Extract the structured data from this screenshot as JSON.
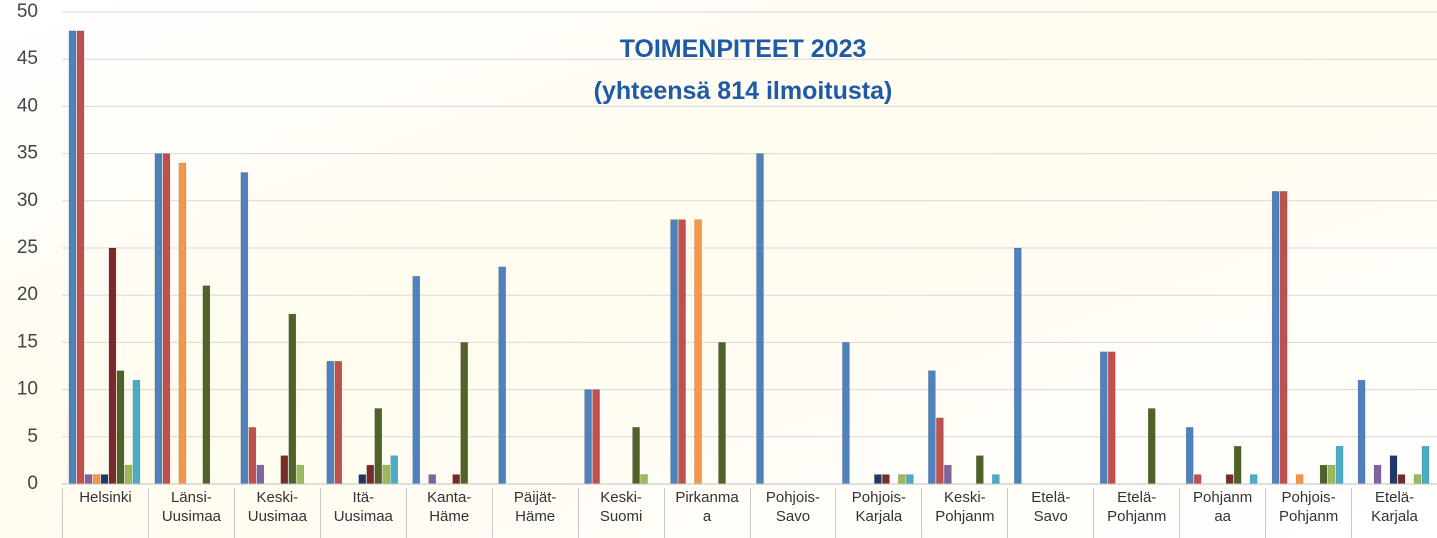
{
  "chart_data": {
    "type": "bar",
    "title": "TOIMENPITEET  2023",
    "subtitle": "(yhteensä 814 ilmoitusta)",
    "categories": [
      "Helsinki",
      "Länsi-\nUusimaa",
      "Keski-\nUusimaa",
      "Itä-\nUusimaa",
      "Kanta-\nHäme",
      "Päijät-\nHäme",
      "Keski-\nSuomi",
      "Pirkanma\na",
      "Pohjois-\nSavo",
      "Pohjois-\nKarjala",
      "Keski-\nPohjanm",
      "Etelä-\nSavo",
      "Etelä-\nPohjanm",
      "Pohjanm\naa",
      "Pohjois-\nPohjanm",
      "Etelä-\nKarjala"
    ],
    "series": [
      {
        "color": "#4f81bd",
        "values": [
          48,
          35,
          33,
          13,
          22,
          23,
          10,
          28,
          35,
          15,
          12,
          25,
          14,
          6,
          31,
          11
        ]
      },
      {
        "color": "#c0504d",
        "values": [
          48,
          35,
          6,
          13,
          0,
          0,
          10,
          28,
          0,
          0,
          7,
          0,
          14,
          1,
          31,
          0
        ]
      },
      {
        "color": "#8064a2",
        "values": [
          1,
          0,
          2,
          0,
          1,
          0,
          0,
          0,
          0,
          0,
          2,
          0,
          0,
          0,
          0,
          2
        ]
      },
      {
        "color": "#f79646",
        "values": [
          1,
          34,
          0,
          0,
          0,
          0,
          0,
          28,
          0,
          0,
          0,
          0,
          0,
          0,
          1,
          0
        ]
      },
      {
        "color": "#1f3864",
        "values": [
          1,
          0,
          0,
          1,
          0,
          0,
          0,
          0,
          0,
          1,
          0,
          0,
          0,
          0,
          0,
          3
        ]
      },
      {
        "color": "#772c2a",
        "values": [
          25,
          0,
          3,
          2,
          1,
          0,
          0,
          0,
          0,
          1,
          0,
          0,
          0,
          1,
          0,
          1
        ]
      },
      {
        "color": "#4f6228",
        "values": [
          12,
          21,
          18,
          8,
          15,
          0,
          6,
          15,
          0,
          0,
          3,
          0,
          8,
          4,
          2,
          0
        ]
      },
      {
        "color": "#9bbb59",
        "values": [
          2,
          0,
          2,
          2,
          0,
          0,
          1,
          0,
          0,
          1,
          0,
          0,
          0,
          0,
          2,
          1
        ]
      },
      {
        "color": "#4bacc6",
        "values": [
          11,
          0,
          0,
          3,
          0,
          0,
          0,
          0,
          0,
          1,
          1,
          0,
          0,
          1,
          4,
          4
        ]
      }
    ],
    "ylim": [
      0,
      50
    ],
    "yticks": [
      0,
      5,
      10,
      15,
      20,
      25,
      30,
      35,
      40,
      45,
      50
    ],
    "grid": true
  }
}
